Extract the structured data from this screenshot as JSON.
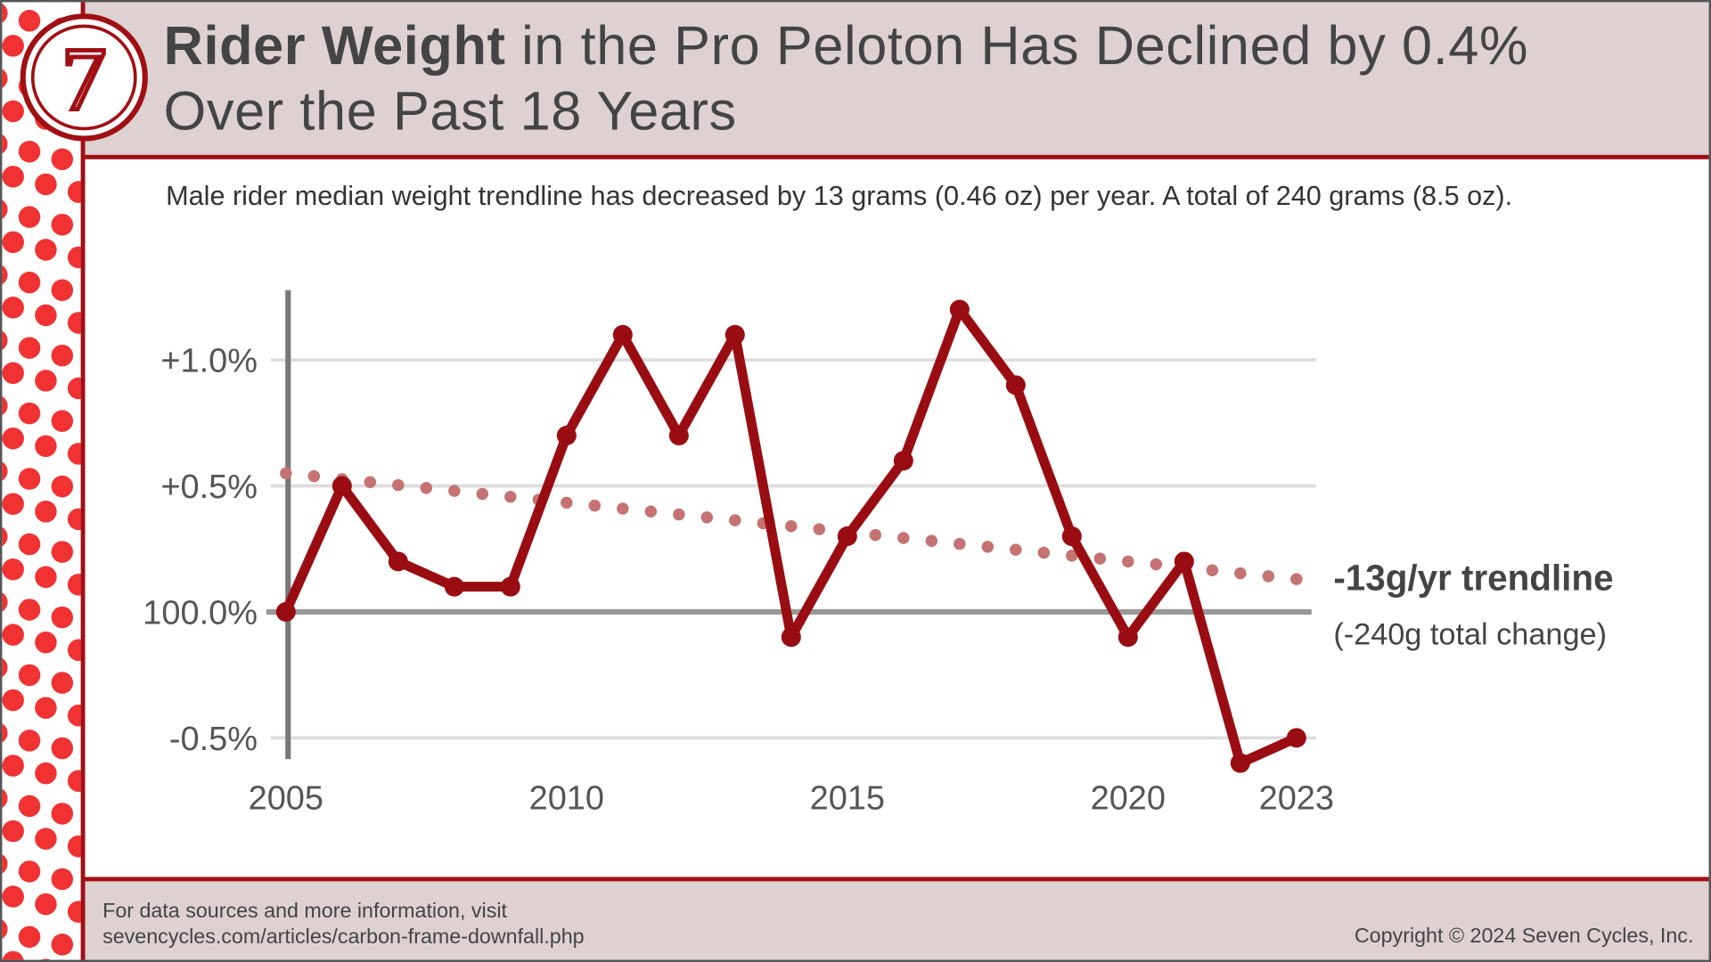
{
  "header": {
    "title_bold": "Rider Weight",
    "title_rest": " in the Pro Peloton Has Declined by 0.4%",
    "title_line2": "Over the Past 18 Years",
    "logo_text": "7"
  },
  "subtitle": "Male rider median weight trendline has decreased by 13 grams (0.46 oz) per year.  A total of 240 grams (8.5 oz).",
  "footer": {
    "line1": "For data sources and more information, visit",
    "line2": "sevencycles.com/articles/carbon-frame-downfall.php",
    "copyright": "Copyright © 2024 Seven Cycles, Inc."
  },
  "colors": {
    "accent": "#a00f14",
    "series": "#990d12",
    "trend": "#c47272",
    "header_bg": "#ddd1d1",
    "polka": "#f03232"
  },
  "chart_data": {
    "type": "line",
    "x": [
      2005,
      2006,
      2007,
      2008,
      2009,
      2010,
      2011,
      2012,
      2013,
      2014,
      2015,
      2016,
      2017,
      2018,
      2019,
      2020,
      2021,
      2022,
      2023
    ],
    "series": [
      {
        "values": [
          0,
          0.5,
          0.2,
          0.1,
          0.1,
          0.7,
          1.1,
          0.7,
          1.1,
          -0.1,
          0.3,
          0.6,
          1.2,
          0.9,
          0.3,
          -0.1,
          0.2,
          -0.6,
          -0.5
        ]
      }
    ],
    "trendline": {
      "start": [
        2005,
        0.55
      ],
      "end": [
        2023,
        0.13
      ],
      "label": "-13g/yr trendline",
      "sublabel": "(-240g total change)"
    },
    "x_ticks": [
      {
        "value": 2005,
        "label": "2005"
      },
      {
        "value": 2010,
        "label": "2010"
      },
      {
        "value": 2015,
        "label": "2015"
      },
      {
        "value": 2020,
        "label": "2020"
      },
      {
        "value": 2023,
        "label": "2023"
      }
    ],
    "y_ticks": [
      {
        "value": 1.0,
        "label": "+1.0%"
      },
      {
        "value": 0.5,
        "label": "+0.5%"
      },
      {
        "value": 0,
        "label": "100.0%"
      },
      {
        "value": -0.5,
        "label": "-0.5%"
      }
    ],
    "ylim": [
      -0.6,
      1.3
    ],
    "grid": true
  }
}
